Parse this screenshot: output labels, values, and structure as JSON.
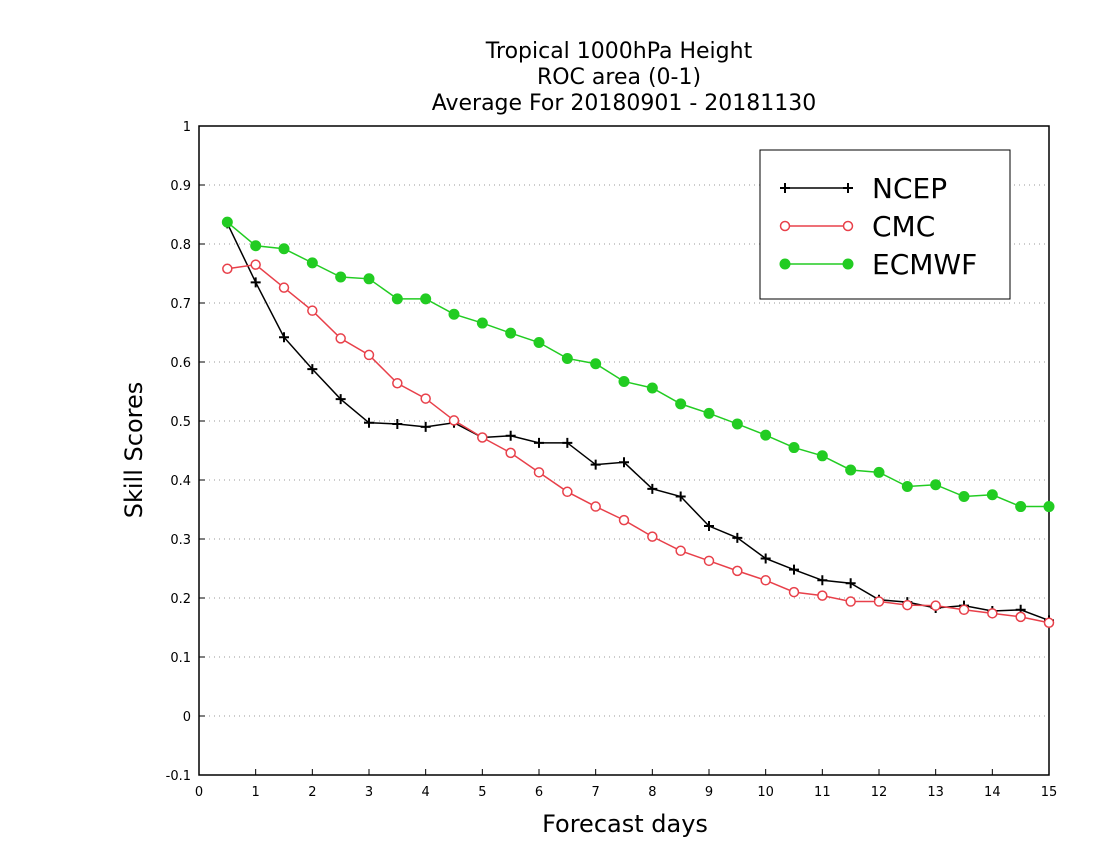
{
  "chart_data": {
    "type": "line",
    "title_lines": [
      "Tropical 1000hPa Height",
      "ROC area (0-1)",
      "Average For 20180901 - 20181130"
    ],
    "xlabel": "Forecast days",
    "ylabel": "Skill Scores",
    "xlim": [
      0,
      15
    ],
    "ylim": [
      -0.1,
      1
    ],
    "xticks": [
      0,
      1,
      2,
      3,
      4,
      5,
      6,
      7,
      8,
      9,
      10,
      11,
      12,
      13,
      14,
      15
    ],
    "yticks": [
      -0.1,
      0,
      0.1,
      0.2,
      0.3,
      0.4,
      0.5,
      0.6,
      0.7,
      0.8,
      0.9,
      1
    ],
    "ytick_labels": [
      "-0.1",
      "0",
      "0.1",
      "0.2",
      "0.3",
      "0.4",
      "0.5",
      "0.6",
      "0.7",
      "0.8",
      "0.9",
      "1"
    ],
    "grid": "horizontal dotted",
    "legend_position": "top-right",
    "x": [
      0.5,
      1,
      1.5,
      2,
      2.5,
      3,
      3.5,
      4,
      4.5,
      5,
      5.5,
      6,
      6.5,
      7,
      7.5,
      8,
      8.5,
      9,
      9.5,
      10,
      10.5,
      11,
      11.5,
      12,
      12.5,
      13,
      13.5,
      14,
      14.5,
      15
    ],
    "series": [
      {
        "name": "NCEP",
        "color": "#000000",
        "marker": "plus",
        "values": [
          0.835,
          0.735,
          0.642,
          0.588,
          0.537,
          0.497,
          0.495,
          0.49,
          0.497,
          0.472,
          0.475,
          0.463,
          0.463,
          0.426,
          0.43,
          0.385,
          0.372,
          0.322,
          0.302,
          0.267,
          0.248,
          0.23,
          0.225,
          0.197,
          0.193,
          0.183,
          0.187,
          0.178,
          0.18,
          0.162
        ]
      },
      {
        "name": "CMC",
        "color": "#e8404a",
        "marker": "open-circle",
        "values": [
          0.758,
          0.765,
          0.726,
          0.687,
          0.64,
          0.612,
          0.564,
          0.538,
          0.501,
          0.472,
          0.446,
          0.413,
          0.38,
          0.355,
          0.332,
          0.304,
          0.28,
          0.263,
          0.246,
          0.23,
          0.21,
          0.204,
          0.194,
          0.194,
          0.188,
          0.187,
          0.18,
          0.174,
          0.168,
          0.158
        ]
      },
      {
        "name": "ECMWF",
        "color": "#22cc22",
        "marker": "filled-circle",
        "values": [
          0.837,
          0.797,
          0.792,
          0.768,
          0.744,
          0.741,
          0.707,
          0.707,
          0.681,
          0.666,
          0.649,
          0.633,
          0.606,
          0.597,
          0.567,
          0.556,
          0.529,
          0.513,
          0.495,
          0.476,
          0.455,
          0.441,
          0.417,
          0.413,
          0.389,
          0.392,
          0.372,
          0.375,
          0.355,
          0.355
        ]
      }
    ]
  }
}
